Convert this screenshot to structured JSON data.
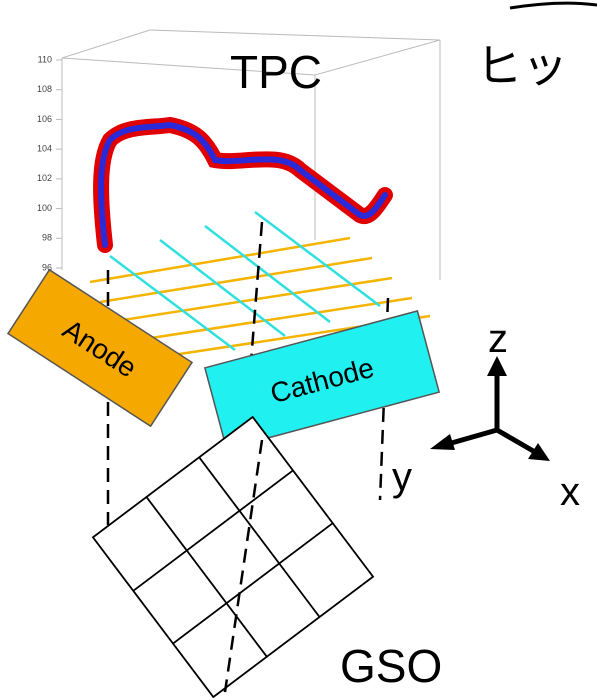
{
  "axis_ticks": [
    110,
    108,
    106,
    104,
    102,
    100,
    98,
    96
  ],
  "labels": {
    "tpc": "TPC",
    "partial_text": "ヒッ",
    "anode": "Anode",
    "cathode": "Cathode",
    "gso": "GSO",
    "z": "z",
    "y": "y",
    "x": "x"
  }
}
